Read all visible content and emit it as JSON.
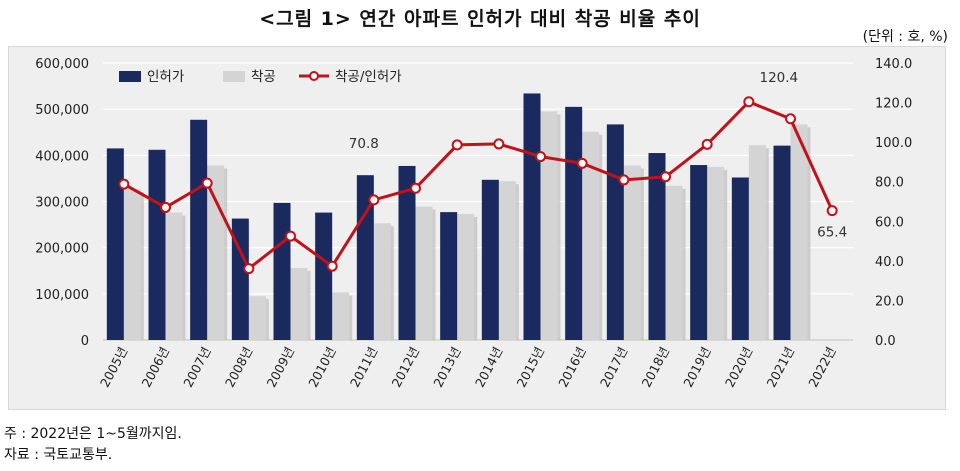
{
  "title": "<그림 1> 연간 아파트 인허가 대비 착공 비율 추이",
  "unit": "(단위 : 호, %)",
  "notes": [
    "주 : 2022년은 1~5월까지임.",
    "자료 : 국토교통부."
  ],
  "chart_data": {
    "type": "bar",
    "categories": [
      "2005년",
      "2006년",
      "2007년",
      "2008년",
      "2009년",
      "2010년",
      "2011년",
      "2012년",
      "2013년",
      "2014년",
      "2015년",
      "2016년",
      "2017년",
      "2018년",
      "2019년",
      "2020년",
      "2021년",
      "2022년"
    ],
    "series": [
      {
        "name": "인허가",
        "kind": "bar",
        "axis": "left",
        "color": "#1b2a5e",
        "values": [
          415000,
          412000,
          477000,
          263000,
          297000,
          276000,
          357000,
          377000,
          277000,
          347000,
          534000,
          505000,
          467000,
          405000,
          379000,
          352000,
          421000,
          null
        ]
      },
      {
        "name": "착공",
        "kind": "bar",
        "axis": "left",
        "color": "#d4d4d4",
        "values": [
          327000,
          276000,
          378000,
          95000,
          156000,
          103000,
          253000,
          289000,
          273000,
          344000,
          495000,
          451000,
          378000,
          334000,
          375000,
          422000,
          467000,
          null
        ]
      },
      {
        "name": "착공/인허가",
        "kind": "line",
        "axis": "right",
        "color": "#c0121b",
        "values": [
          78.8,
          67.0,
          79.3,
          36.1,
          52.5,
          37.3,
          70.8,
          76.7,
          98.6,
          99.1,
          92.7,
          89.3,
          80.9,
          82.5,
          98.9,
          120.4,
          111.8,
          65.4
        ]
      }
    ],
    "annotations": [
      {
        "series": "착공/인허가",
        "category": "2011년",
        "text": "70.8"
      },
      {
        "series": "착공/인허가",
        "category": "2020년",
        "text": "120.4"
      },
      {
        "series": "착공/인허가",
        "category": "2022년",
        "text": "65.4"
      }
    ],
    "y_left": {
      "min": 0,
      "max": 600000,
      "ticks": [
        "0",
        "100,000",
        "200,000",
        "300,000",
        "400,000",
        "500,000",
        "600,000"
      ]
    },
    "y_right": {
      "min": 0,
      "max": 140,
      "ticks": [
        "0.0",
        "20.0",
        "40.0",
        "60.0",
        "80.0",
        "100.0",
        "120.0",
        "140.0"
      ]
    },
    "legend_position": "top-left",
    "grid": true
  }
}
